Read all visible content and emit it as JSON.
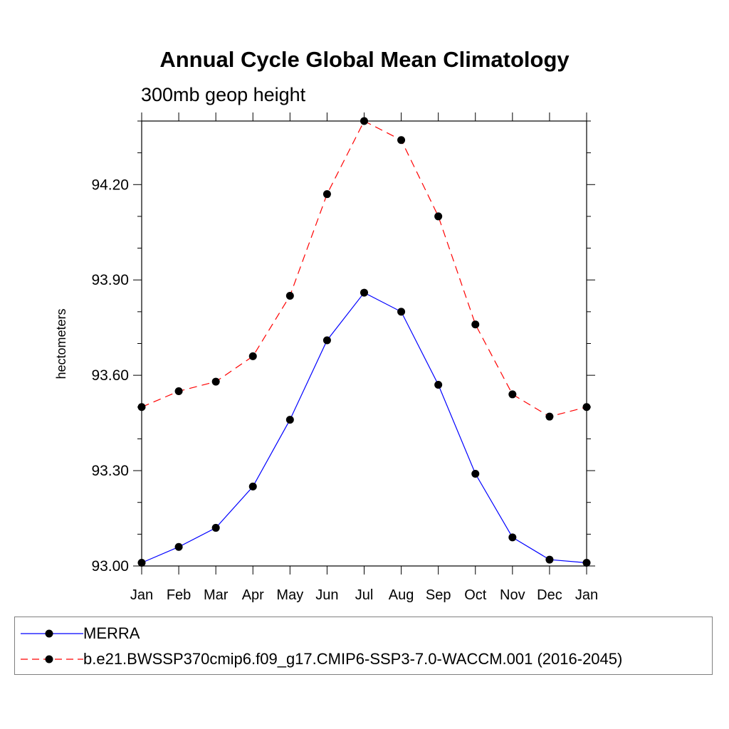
{
  "chart_data": {
    "type": "line",
    "title": "Annual Cycle Global Mean Climatology",
    "subtitle": "300mb geop height",
    "ylabel": "hectometers",
    "xlabel": "",
    "categories": [
      "Jan",
      "Feb",
      "Mar",
      "Apr",
      "May",
      "Jun",
      "Jul",
      "Aug",
      "Sep",
      "Oct",
      "Nov",
      "Dec",
      "Jan"
    ],
    "ylim": [
      93.0,
      94.4
    ],
    "yticks": [
      93.0,
      93.3,
      93.6,
      93.9,
      94.2
    ],
    "ytick_labels": [
      "93.00",
      "93.30",
      "93.60",
      "93.90",
      "94.20"
    ],
    "grid": false,
    "legend_position": "bottom",
    "series": [
      {
        "name": "MERRA",
        "color": "#0000ff",
        "line_style": "solid",
        "marker": "filled-circle",
        "values": [
          93.01,
          93.06,
          93.12,
          93.25,
          93.46,
          93.71,
          93.86,
          93.8,
          93.57,
          93.29,
          93.09,
          93.02,
          93.01
        ]
      },
      {
        "name": "b.e21.BWSSP370cmip6.f09_g17.CMIP6-SSP3-7.0-WACCM.001 (2016-2045)",
        "color": "#ff0000",
        "line_style": "dashed",
        "marker": "filled-circle",
        "values": [
          93.5,
          93.55,
          93.58,
          93.66,
          93.85,
          94.17,
          94.4,
          94.34,
          94.1,
          93.76,
          93.54,
          93.47,
          93.5
        ]
      }
    ]
  }
}
